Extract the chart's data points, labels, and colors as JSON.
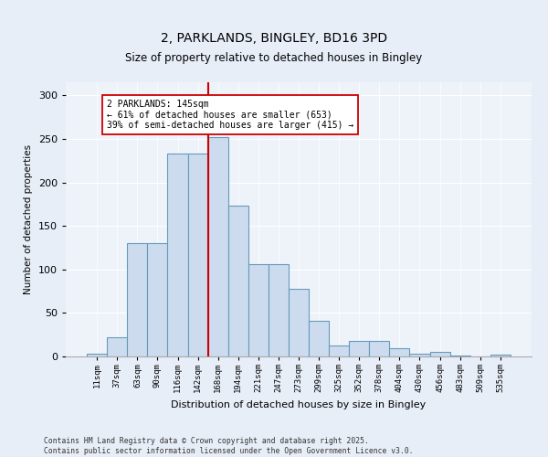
{
  "title1": "2, PARKLANDS, BINGLEY, BD16 3PD",
  "title2": "Size of property relative to detached houses in Bingley",
  "xlabel": "Distribution of detached houses by size in Bingley",
  "ylabel": "Number of detached properties",
  "categories": [
    "11sqm",
    "37sqm",
    "63sqm",
    "90sqm",
    "116sqm",
    "142sqm",
    "168sqm",
    "194sqm",
    "221sqm",
    "247sqm",
    "273sqm",
    "299sqm",
    "325sqm",
    "352sqm",
    "378sqm",
    "404sqm",
    "430sqm",
    "456sqm",
    "483sqm",
    "509sqm",
    "535sqm"
  ],
  "bar_heights": [
    3,
    22,
    130,
    130,
    233,
    233,
    252,
    173,
    106,
    106,
    78,
    41,
    13,
    18,
    18,
    9,
    3,
    5,
    1,
    0,
    2
  ],
  "bar_color": "#ccdcee",
  "bar_edge_color": "#6699bb",
  "vline_index": 6,
  "annotation_text": "2 PARKLANDS: 145sqm\n← 61% of detached houses are smaller (653)\n39% of semi-detached houses are larger (415) →",
  "vline_color": "#cc0000",
  "annotation_box_color": "#ffffff",
  "annotation_box_edge": "#cc0000",
  "ylim": [
    0,
    315
  ],
  "yticks": [
    0,
    50,
    100,
    150,
    200,
    250,
    300
  ],
  "footer1": "Contains HM Land Registry data © Crown copyright and database right 2025.",
  "footer2": "Contains public sector information licensed under the Open Government Licence v3.0.",
  "bg_color": "#e8eef8",
  "plot_bg_color": "#eef3fa"
}
